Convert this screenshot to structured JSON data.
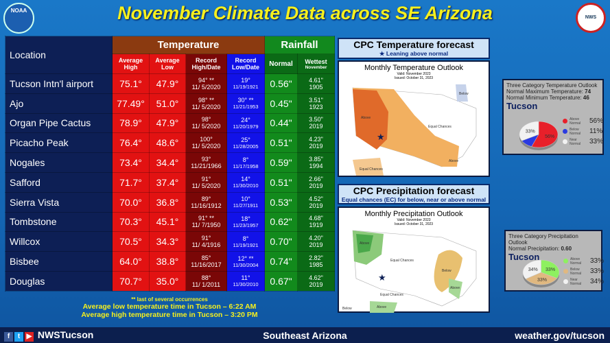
{
  "title": "November Climate Data across SE Arizona",
  "logos": {
    "left": "NOAA",
    "right": "NATIONAL WEATHER SERVICE"
  },
  "table": {
    "location_header": "Location",
    "temperature_header": "Temperature",
    "rainfall_header": "Rainfall",
    "columns": {
      "avg_high": "Average High",
      "avg_low": "Average Low",
      "record_high": "Record High/Date",
      "record_low": "Record Low/Date",
      "normal": "Normal",
      "wettest": "Wettest",
      "wettest_sub": "November"
    },
    "rows": [
      {
        "location": "Tucson Intn'l airport",
        "avg_high": "75.1°",
        "avg_low": "47.9°",
        "rec_high": "94° **",
        "rec_high_date": "11/ 5/2020",
        "rec_low": "19°",
        "rec_low_date": "11/19/1921",
        "normal": "0.56\"",
        "wettest": "4.61\"",
        "wettest_year": "1905"
      },
      {
        "location": "Ajo",
        "avg_high": "77.49°",
        "avg_low": "51.0°",
        "rec_high": "98° **",
        "rec_high_date": "11/ 5/2020",
        "rec_low": "30° **",
        "rec_low_date": "11/21/1953",
        "normal": "0.45\"",
        "wettest": "3.51\"",
        "wettest_year": "1923"
      },
      {
        "location": "Organ Pipe Cactus",
        "avg_high": "78.9°",
        "avg_low": "47.9°",
        "rec_high": "98°",
        "rec_high_date": "11/ 5/2020",
        "rec_low": "24°",
        "rec_low_date": "11/20/1979",
        "normal": "0.44\"",
        "wettest": "3.50\"",
        "wettest_year": "2019"
      },
      {
        "location": "Picacho Peak",
        "avg_high": "76.4°",
        "avg_low": "48.6°",
        "rec_high": "100°",
        "rec_high_date": "11/ 5/2020",
        "rec_low": "25°",
        "rec_low_date": "11/28/2005",
        "normal": "0.51\"",
        "wettest": "4.23\"",
        "wettest_year": "2019"
      },
      {
        "location": "Nogales",
        "avg_high": "73.4°",
        "avg_low": "34.4°",
        "rec_high": "93°",
        "rec_high_date": "11/21/1966",
        "rec_low": "8°",
        "rec_low_date": "11/17/1958",
        "normal": "0.59\"",
        "wettest": "3.85\"",
        "wettest_year": "1994"
      },
      {
        "location": "Safford",
        "avg_high": "71.7°",
        "avg_low": "37.4°",
        "rec_high": "91°",
        "rec_high_date": "11/ 5/2020",
        "rec_low": "14°",
        "rec_low_date": "11/30/2010",
        "normal": "0.51\"",
        "wettest": "2.66\"",
        "wettest_year": "2019"
      },
      {
        "location": "Sierra Vista",
        "avg_high": "70.0°",
        "avg_low": "36.8°",
        "rec_high": "89°",
        "rec_high_date": "11/16/1912",
        "rec_low": "10°",
        "rec_low_date": "11/27/1911",
        "normal": "0.53\"",
        "wettest": "4.52\"",
        "wettest_year": "2019"
      },
      {
        "location": "Tombstone",
        "avg_high": "70.3°",
        "avg_low": "45.1°",
        "rec_high": "91° **",
        "rec_high_date": "11/ 7/1950",
        "rec_low": "18°",
        "rec_low_date": "11/23/1957",
        "normal": "0.62\"",
        "wettest": "4.68\"",
        "wettest_year": "1919"
      },
      {
        "location": "Willcox",
        "avg_high": "70.5°",
        "avg_low": "34.3°",
        "rec_high": "91°",
        "rec_high_date": "11/ 4/1916",
        "rec_low": "8°",
        "rec_low_date": "11/19/1921",
        "normal": "0.70\"",
        "wettest": "4.20\"",
        "wettest_year": "2019"
      },
      {
        "location": "Bisbee",
        "avg_high": "64.0°",
        "avg_low": "38.8°",
        "rec_high": "85°",
        "rec_high_date": "11/16/2017",
        "rec_low": "12° **",
        "rec_low_date": "11/30/2004",
        "normal": "0.74\"",
        "wettest": "2.82\"",
        "wettest_year": "1985"
      },
      {
        "location": "Douglas",
        "avg_high": "70.7°",
        "avg_low": "35.0°",
        "rec_high": "88°",
        "rec_high_date": "11/ 1/2011",
        "rec_low": "11°",
        "rec_low_date": "11/30/2010",
        "normal": "0.67\"",
        "wettest": "4.62\"",
        "wettest_year": "2019"
      }
    ]
  },
  "notes": {
    "footnote": "** last of several occurrences",
    "low_time": "Average low temperature time in Tucson – 6:22 AM",
    "high_time": "Average high temperature time in Tucson – 3:20 PM"
  },
  "temp_forecast": {
    "title": "CPC Temperature forecast",
    "subtitle": "Leaning above normal",
    "map_title": "Monthly Temperature Outlook",
    "valid": "Valid: November 2023",
    "issued": "Issued: October 31, 2023",
    "labels": [
      "Above",
      "Below",
      "Equal Chances",
      "Above",
      "Equal Chances"
    ]
  },
  "precip_forecast": {
    "title": "CPC Precipitation forecast",
    "subtitle": "Equal chances (EC) for below, near or above normal",
    "map_title": "Monthly Precipitation Outlook",
    "valid": "Valid: November 2023",
    "issued": "Issued: October 31, 2023",
    "labels": [
      "Above",
      "Equal Chances",
      "Below",
      "Above",
      "Above",
      "Below",
      "Equal Chances"
    ]
  },
  "temp_outlook": {
    "heading": "Three Category Temperature Outlook",
    "max_label": "Normal Maximum Temperature:",
    "max": "74",
    "min_label": "Normal Minimum Temperature:",
    "min": "46",
    "city": "Tucson",
    "slices": [
      {
        "label": "Above Normal",
        "value": 56,
        "pct": "56%",
        "color": "#e8202a"
      },
      {
        "label": "Below Normal",
        "value": 11,
        "pct": "11%",
        "color": "#2b3be0"
      },
      {
        "label": "Near Normal",
        "value": 33,
        "pct": "33%",
        "color": "#f2f2f2"
      }
    ]
  },
  "precip_outlook": {
    "heading": "Three Category Precipitation Outlook",
    "normal_label": "Normal Precipitation:",
    "normal": "0.60",
    "city": "Tucson",
    "slices": [
      {
        "label": "Above Normal",
        "value": 33,
        "pct": "33%",
        "color": "#8ef060"
      },
      {
        "label": "Below Normal",
        "value": 33,
        "pct": "33%",
        "color": "#e0b880"
      },
      {
        "label": "Near Normal",
        "value": 34,
        "pct": "34%",
        "color": "#f2f2f2"
      }
    ]
  },
  "footer": {
    "handle": "NWSTucson",
    "region": "Southeast Arizona",
    "url": "weather.gov/tucson"
  }
}
